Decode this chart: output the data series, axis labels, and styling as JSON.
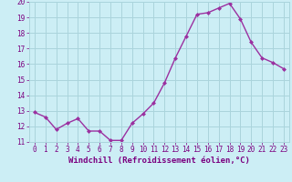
{
  "x": [
    0,
    1,
    2,
    3,
    4,
    5,
    6,
    7,
    8,
    9,
    10,
    11,
    12,
    13,
    14,
    15,
    16,
    17,
    18,
    19,
    20,
    21,
    22,
    23
  ],
  "y": [
    12.9,
    12.6,
    11.8,
    12.2,
    12.5,
    11.7,
    11.7,
    11.1,
    11.1,
    12.2,
    12.8,
    13.5,
    14.8,
    16.4,
    17.8,
    19.2,
    19.3,
    19.6,
    19.9,
    18.9,
    17.4,
    16.4,
    16.1,
    15.7
  ],
  "line_color": "#9b30a0",
  "marker": "D",
  "markersize": 2.0,
  "linewidth": 1.0,
  "bg_color": "#cceef5",
  "grid_color": "#aad4dc",
  "xlabel": "Windchill (Refroidissement éolien,°C)",
  "xlabel_color": "#7b0080",
  "tick_color": "#7b0080",
  "ylim": [
    11,
    20
  ],
  "xlim": [
    -0.5,
    23.5
  ],
  "yticks": [
    11,
    12,
    13,
    14,
    15,
    16,
    17,
    18,
    19,
    20
  ],
  "xticks": [
    0,
    1,
    2,
    3,
    4,
    5,
    6,
    7,
    8,
    9,
    10,
    11,
    12,
    13,
    14,
    15,
    16,
    17,
    18,
    19,
    20,
    21,
    22,
    23
  ],
  "tick_fontsize": 5.5,
  "xlabel_fontsize": 6.5
}
